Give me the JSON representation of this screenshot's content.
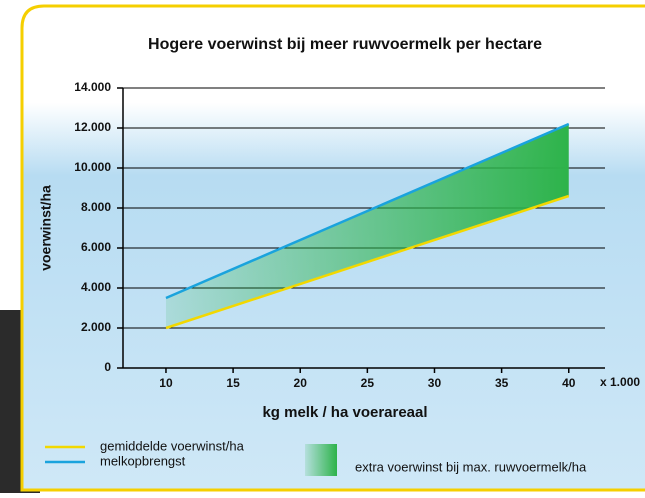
{
  "chart_data": {
    "type": "line",
    "title": "Hogere voerwinst bij meer ruwvoermelk per hectare",
    "x_label": "kg melk / ha voerareaal",
    "x_unit": "x 1.000",
    "y_label": "voerwinst/ha",
    "x": [
      10,
      40
    ],
    "series": [
      {
        "name": "gemiddelde voerwinst/ha",
        "color": "#f2d800",
        "values": [
          2000,
          8600
        ]
      },
      {
        "name": "melkopbrengst",
        "color": "#1aa3dd",
        "values": [
          3500,
          12200
        ]
      }
    ],
    "area": {
      "name": "extra voerwinst bij max. ruwvoermelk/ha",
      "color": "#2db34a"
    },
    "xlim": [
      6.8,
      42.7
    ],
    "xticks": [
      10,
      15,
      20,
      25,
      30,
      35,
      40
    ],
    "ylim": [
      0,
      14000
    ],
    "yticks": [
      0,
      {
        "value": 2000,
        "label": "2.000"
      },
      {
        "value": 4000,
        "label": "4.000"
      },
      {
        "value": 6000,
        "label": "6.000"
      },
      {
        "value": 8000,
        "label": "8.000"
      },
      {
        "value": 10000,
        "label": "10.000"
      },
      {
        "value": 12000,
        "label": "12.000"
      },
      {
        "value": 14000,
        "label": "14.000"
      }
    ],
    "grid": true
  }
}
